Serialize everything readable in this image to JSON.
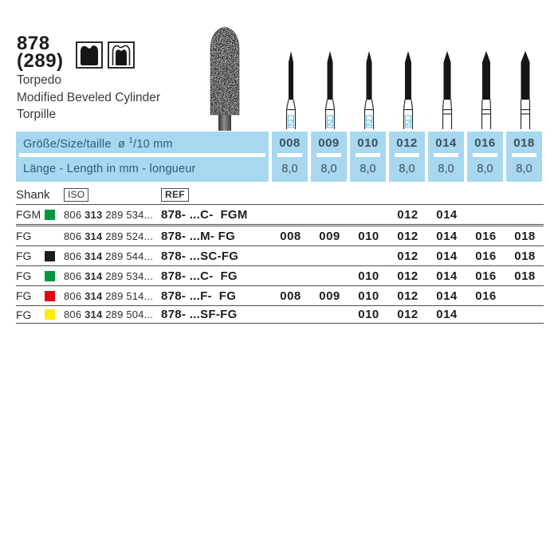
{
  "product": {
    "number": "878",
    "alt_number": "(289)",
    "names": [
      "Torpedo",
      "Modified Beveled Cylinder",
      "Torpille"
    ]
  },
  "icons": [
    "tooth-preparation-icon",
    "tooth-crown-preparation-icon"
  ],
  "banner": {
    "size_label_pre": "Größe/Size/taille  ø ",
    "size_label_sup": "1",
    "size_label_post": "/10 mm",
    "length_label": "Länge - Length in mm - longueur",
    "sizes": [
      "008",
      "009",
      "010",
      "012",
      "014",
      "016",
      "018"
    ],
    "lengths": [
      "8,0",
      "8,0",
      "8,0",
      "8,0",
      "8,0",
      "8,0",
      "8,0"
    ]
  },
  "table": {
    "headers": {
      "shank": "Shank",
      "iso": "ISO",
      "ref": "REF"
    },
    "rows": [
      {
        "shank": "FGM",
        "dot": "#009640",
        "iso1": "806 ",
        "iso2": "313",
        "iso3": " 289 534...",
        "ref": "878- ...C-  FGM",
        "sizes": [
          "",
          "",
          "",
          "012",
          "014",
          "",
          ""
        ]
      },
      {
        "shank": "FG",
        "dot": "",
        "iso1": "806 ",
        "iso2": "314",
        "iso3": " 289 524...",
        "ref": "878- ...M- FG",
        "sizes": [
          "008",
          "009",
          "010",
          "012",
          "014",
          "016",
          "018"
        ]
      },
      {
        "shank": "FG",
        "dot": "#1d1d1b",
        "iso1": "806 ",
        "iso2": "314",
        "iso3": " 289 544...",
        "ref": "878- ...SC-FG",
        "sizes": [
          "",
          "",
          "",
          "012",
          "014",
          "016",
          "018"
        ]
      },
      {
        "shank": "FG",
        "dot": "#009640",
        "iso1": "806 ",
        "iso2": "314",
        "iso3": " 289 534...",
        "ref": "878- ...C-  FG",
        "sizes": [
          "",
          "",
          "010",
          "012",
          "014",
          "016",
          "018"
        ]
      },
      {
        "shank": "FG",
        "dot": "#e30613",
        "iso1": "806 ",
        "iso2": "314",
        "iso3": " 289 514...",
        "ref": "878- ...F-  FG",
        "sizes": [
          "008",
          "009",
          "010",
          "012",
          "014",
          "016",
          ""
        ]
      },
      {
        "shank": "FG",
        "dot": "#ffed00",
        "iso1": "806 ",
        "iso2": "314",
        "iso3": " 289 504...",
        "ref": "878- ...SF-FG",
        "sizes": [
          "",
          "",
          "010",
          "012",
          "014",
          "",
          ""
        ]
      }
    ]
  },
  "burs": {
    "shank_mark": "2",
    "items": [
      {
        "w": 6,
        "mark": true
      },
      {
        "w": 7,
        "mark": true
      },
      {
        "w": 7,
        "mark": true
      },
      {
        "w": 8,
        "mark": true
      },
      {
        "w": 9,
        "mark": false
      },
      {
        "w": 10,
        "mark": false
      },
      {
        "w": 11,
        "mark": false
      }
    ]
  },
  "colors": {
    "banner_bg": "#a7d8ef",
    "banner_label_text": "#2d5c79",
    "banner_value_text": "#3d4f5a",
    "rule": "#4f4f4f",
    "text_dark": "#1d1d1b",
    "mark_blue": "#45b3d8",
    "dot_green": "#009640",
    "dot_black": "#1d1d1b",
    "dot_red": "#e30613",
    "dot_yellow": "#ffed00"
  }
}
